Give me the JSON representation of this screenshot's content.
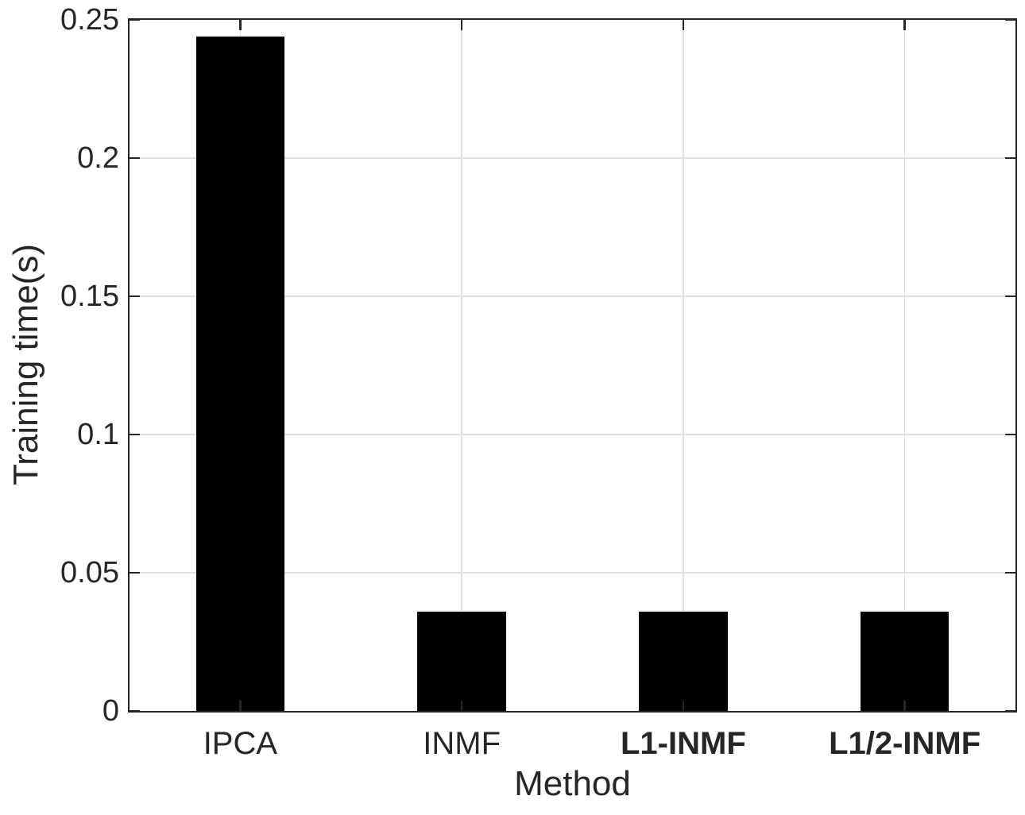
{
  "figure": {
    "background": "#ffffff",
    "axis_color": "#262626",
    "grid_color": "#e0e0e0",
    "text_color": "#262626",
    "bar_color": "#000000"
  },
  "chart_data": {
    "type": "bar",
    "title": "",
    "xlabel": "Method",
    "ylabel": "Training time(s)",
    "categories": [
      "IPCA",
      "INMF",
      "L1-INMF",
      "L1/2-INMF"
    ],
    "category_bold": [
      false,
      false,
      true,
      true
    ],
    "series": [
      {
        "name": "Training time",
        "values": [
          0.244,
          0.036,
          0.036,
          0.036
        ]
      }
    ],
    "bar_color": "#000000",
    "ylim": [
      0,
      0.25
    ],
    "yticks": [
      0,
      0.05,
      0.1,
      0.15,
      0.2,
      0.25
    ],
    "ytick_labels": [
      "0",
      "0.05",
      "0.1",
      "0.15",
      "0.2",
      "0.25"
    ],
    "grid": true,
    "grid_style": "both-x-and-y-light-gray",
    "legend_position": "none",
    "bar_width_fraction": 0.4
  }
}
